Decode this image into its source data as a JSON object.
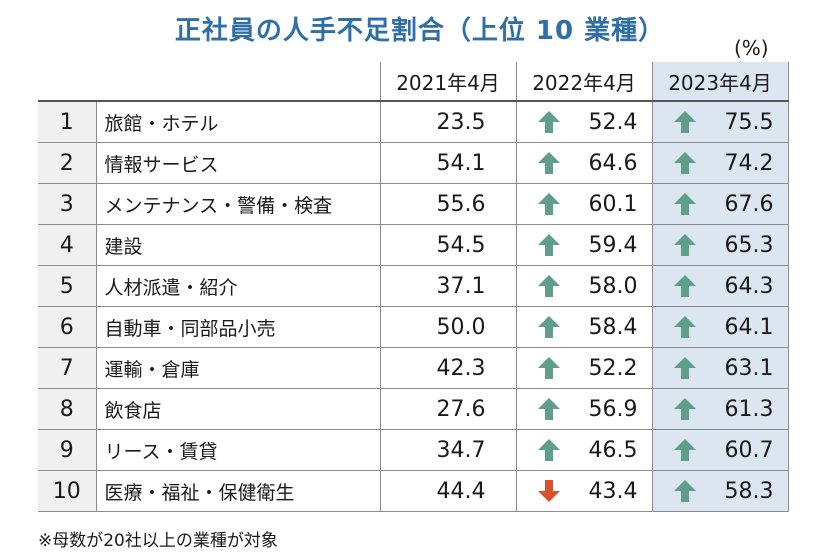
{
  "title": "正社員の人手不足割合（上位 10 業種）",
  "unit": "(%)",
  "note": "※母数が20社以上の業種が対象",
  "colors": {
    "title": "#2f6fa8",
    "up": "#5e9e8a",
    "down": "#d9502e",
    "highlight": "#dce6f1"
  },
  "chart_data": {
    "type": "table",
    "columns": [
      "2021年4月",
      "2022年4月",
      "2023年4月"
    ],
    "rows": [
      {
        "rank": "1",
        "name": "旅館・ホテル",
        "values": [
          "23.5",
          "52.4",
          "75.5"
        ],
        "arrows": [
          "",
          "up",
          "up"
        ]
      },
      {
        "rank": "2",
        "name": "情報サービス",
        "values": [
          "54.1",
          "64.6",
          "74.2"
        ],
        "arrows": [
          "",
          "up",
          "up"
        ]
      },
      {
        "rank": "3",
        "name": "メンテナンス・警備・検査",
        "values": [
          "55.6",
          "60.1",
          "67.6"
        ],
        "arrows": [
          "",
          "up",
          "up"
        ]
      },
      {
        "rank": "4",
        "name": "建設",
        "values": [
          "54.5",
          "59.4",
          "65.3"
        ],
        "arrows": [
          "",
          "up",
          "up"
        ]
      },
      {
        "rank": "5",
        "name": "人材派遣・紹介",
        "values": [
          "37.1",
          "58.0",
          "64.3"
        ],
        "arrows": [
          "",
          "up",
          "up"
        ]
      },
      {
        "rank": "6",
        "name": "自動車・同部品小売",
        "values": [
          "50.0",
          "58.4",
          "64.1"
        ],
        "arrows": [
          "",
          "up",
          "up"
        ]
      },
      {
        "rank": "7",
        "name": "運輸・倉庫",
        "values": [
          "42.3",
          "52.2",
          "63.1"
        ],
        "arrows": [
          "",
          "up",
          "up"
        ]
      },
      {
        "rank": "8",
        "name": "飲食店",
        "values": [
          "27.6",
          "56.9",
          "61.3"
        ],
        "arrows": [
          "",
          "up",
          "up"
        ]
      },
      {
        "rank": "9",
        "name": "リース・賃貸",
        "values": [
          "34.7",
          "46.5",
          "60.7"
        ],
        "arrows": [
          "",
          "up",
          "up"
        ]
      },
      {
        "rank": "10",
        "name": "医療・福祉・保健衛生",
        "values": [
          "44.4",
          "43.4",
          "58.3"
        ],
        "arrows": [
          "",
          "down",
          "up"
        ]
      }
    ]
  }
}
